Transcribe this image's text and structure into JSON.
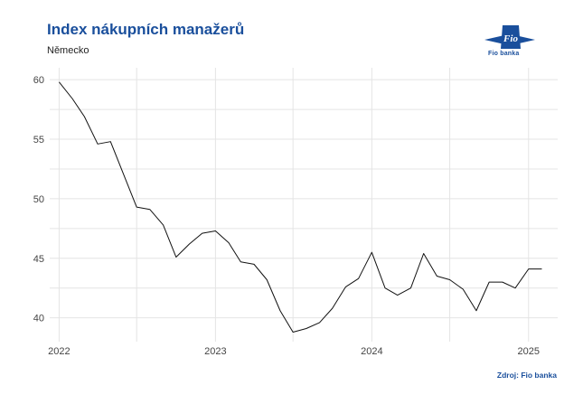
{
  "header": {
    "title": "Index nákupních manažerů",
    "subtitle": "Německo"
  },
  "logo": {
    "mark_text": "Fio",
    "caption": "Fio banka",
    "color": "#1a4f9c"
  },
  "footer": {
    "source": "Zdroj: Fio banka"
  },
  "colors": {
    "line": "#111111",
    "grid": "#e4e4e4",
    "title": "#1a4f9c"
  },
  "chart_data": {
    "type": "line",
    "title": "Index nákupních manažerů",
    "subtitle": "Německo",
    "xlabel": "",
    "ylabel": "",
    "ylim": [
      38,
      61
    ],
    "xlim": [
      "2021-12-10",
      "2025-03-10"
    ],
    "y_ticks": [
      40,
      45,
      50,
      55,
      60
    ],
    "x_ticks": [
      "2022",
      "2023",
      "2024",
      "2025"
    ],
    "grid": true,
    "legend": "none",
    "series": [
      {
        "x": [
          "2022-01",
          "2022-02",
          "2022-03",
          "2022-04",
          "2022-05",
          "2022-06",
          "2022-07",
          "2022-08",
          "2022-09",
          "2022-10",
          "2022-11",
          "2022-12",
          "2023-01",
          "2023-02",
          "2023-03",
          "2023-04",
          "2023-05",
          "2023-06",
          "2023-07",
          "2023-08",
          "2023-09",
          "2023-10",
          "2023-11",
          "2023-12",
          "2024-01",
          "2024-02",
          "2024-03",
          "2024-04",
          "2024-05",
          "2024-06",
          "2024-07",
          "2024-08",
          "2024-09",
          "2024-10",
          "2024-11",
          "2024-12",
          "2025-01",
          "2025-02"
        ],
        "values": [
          59.8,
          58.4,
          56.9,
          54.6,
          54.8,
          52.0,
          49.3,
          49.1,
          47.8,
          45.1,
          46.2,
          47.1,
          47.3,
          46.3,
          44.7,
          44.5,
          43.2,
          40.6,
          38.8,
          39.1,
          39.6,
          40.8,
          42.6,
          43.3,
          45.5,
          42.5,
          41.9,
          42.5,
          45.4,
          43.5,
          43.2,
          42.4,
          40.6,
          43.0,
          43.0,
          42.5,
          44.1,
          44.1
        ]
      }
    ]
  }
}
